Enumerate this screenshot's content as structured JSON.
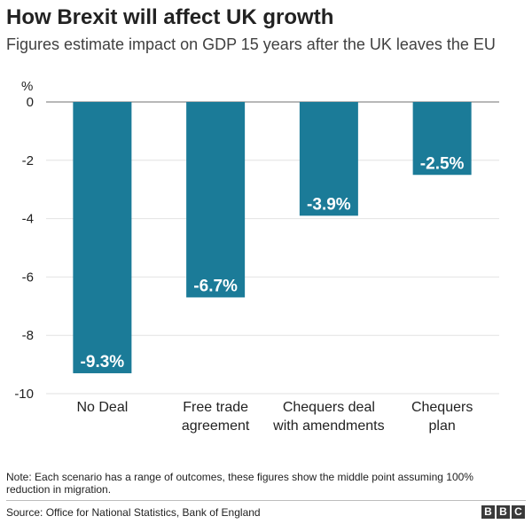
{
  "header": {
    "title": "How Brexit will affect UK growth",
    "subtitle": "Figures estimate impact on GDP 15 years after the UK leaves the EU"
  },
  "chart_data": {
    "type": "bar",
    "title": "How Brexit will affect UK growth",
    "subtitle": "Figures estimate impact on GDP 15 years after the UK leaves the EU",
    "ylabel": "%",
    "xlabel": "",
    "ylim": [
      -10,
      0
    ],
    "yticks": [
      0,
      -2,
      -4,
      -6,
      -8,
      -10
    ],
    "grid": true,
    "categories": [
      [
        "No Deal"
      ],
      [
        "Free trade",
        "agreement"
      ],
      [
        "Chequers deal",
        "with amendments"
      ],
      [
        "Chequers",
        "plan"
      ]
    ],
    "values": [
      -9.3,
      -6.7,
      -3.9,
      -2.5
    ],
    "data_labels": [
      "-9.3%",
      "-6.7%",
      "-3.9%",
      "-2.5%"
    ],
    "bar_color": "#1b7b98"
  },
  "footer": {
    "note": "Note: Each scenario has a range of outcomes, these figures show the middle point assuming 100% reduction in migration.",
    "source": "Source: Office for National Statistics, Bank of England",
    "logo_letters": [
      "B",
      "B",
      "C"
    ]
  }
}
